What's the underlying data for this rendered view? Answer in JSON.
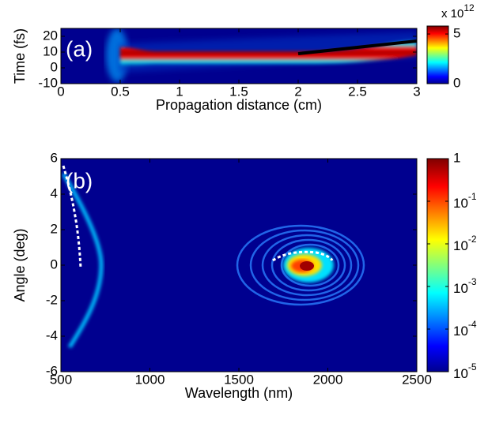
{
  "chart_data": [
    {
      "type": "heatmap",
      "panel_label": "(a)",
      "xlabel": "Propagation distance (cm)",
      "ylabel": "Time (fs)",
      "xlim": [
        0,
        3
      ],
      "xticks": [
        0,
        0.5,
        1,
        1.5,
        2,
        2.5,
        3
      ],
      "ylim": [
        -10,
        25
      ],
      "yticks": [
        -10,
        0,
        10,
        20
      ],
      "colorbar_scale": "linear",
      "clim": [
        0,
        5.8
      ],
      "cticks": [
        0,
        5
      ],
      "colorbar_multiplier": "x 10",
      "colorbar_exponent": "12",
      "annotation_line": {
        "x": [
          2,
          3
        ],
        "y": [
          9,
          17
        ],
        "color": "#000000"
      }
    },
    {
      "type": "heatmap",
      "panel_label": "(b)",
      "xlabel": "Wavelength (nm)",
      "ylabel": "Angle (deg)",
      "xlim": [
        500,
        2500
      ],
      "xticks": [
        500,
        1000,
        1500,
        2000,
        2500
      ],
      "ylim": [
        -6,
        6
      ],
      "yticks": [
        -6,
        -4,
        -2,
        0,
        2,
        4,
        6
      ],
      "colorbar_scale": "log",
      "clim": [
        1e-05,
        1
      ],
      "cticks": [
        1,
        {
          "value": 0.1,
          "label": "10",
          "exponent": "-1"
        },
        {
          "value": 0.01,
          "label": "10",
          "exponent": "-2"
        },
        {
          "value": 0.001,
          "label": "10",
          "exponent": "-3"
        },
        {
          "value": 0.0001,
          "label": "10",
          "exponent": "-4"
        },
        {
          "value": 1e-05,
          "label": "10",
          "exponent": "-5"
        }
      ]
    }
  ]
}
